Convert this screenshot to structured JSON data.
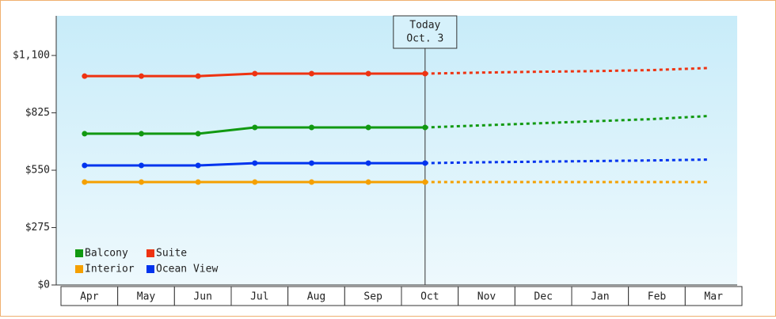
{
  "chart_data": {
    "type": "line",
    "categories": [
      "Apr",
      "May",
      "Jun",
      "Jul",
      "Aug",
      "Sep",
      "Oct",
      "Nov",
      "Dec",
      "Jan",
      "Feb",
      "Mar"
    ],
    "ylim": [
      0,
      1290
    ],
    "yticks": [
      {
        "value": 0,
        "label": "$0"
      },
      {
        "value": 275,
        "label": "$275"
      },
      {
        "value": 550,
        "label": "$550"
      },
      {
        "value": 825,
        "label": "$825"
      },
      {
        "value": 1100,
        "label": "$1,100"
      }
    ],
    "legend": "bottom-left",
    "annotation": {
      "title": "Today",
      "date": "Oct. 3"
    },
    "series": [
      {
        "name": "Balcony",
        "color": "#119911",
        "values": [
          725,
          725,
          725,
          755,
          755,
          755,
          755,
          null,
          null,
          null,
          null,
          null
        ],
        "forecast": [
          null,
          null,
          null,
          null,
          null,
          null,
          755,
          765,
          775,
          785,
          795,
          810
        ]
      },
      {
        "name": "Suite",
        "color": "#ee3311",
        "values": [
          1001,
          1001,
          1001,
          1013,
          1013,
          1013,
          1013,
          null,
          null,
          null,
          null,
          null
        ],
        "forecast": [
          null,
          null,
          null,
          null,
          null,
          null,
          1013,
          1018,
          1022,
          1025,
          1030,
          1040
        ]
      },
      {
        "name": "Interior",
        "color": "#f5a000",
        "values": [
          493,
          493,
          493,
          493,
          493,
          493,
          493,
          null,
          null,
          null,
          null,
          null
        ],
        "forecast": [
          null,
          null,
          null,
          null,
          null,
          null,
          493,
          493,
          493,
          493,
          493,
          493
        ]
      },
      {
        "name": "Ocean View",
        "color": "#0033ee",
        "values": [
          573,
          573,
          573,
          584,
          584,
          584,
          584,
          null,
          null,
          null,
          null,
          null
        ],
        "forecast": [
          null,
          null,
          null,
          null,
          null,
          null,
          584,
          588,
          591,
          594,
          597,
          601
        ]
      }
    ]
  }
}
